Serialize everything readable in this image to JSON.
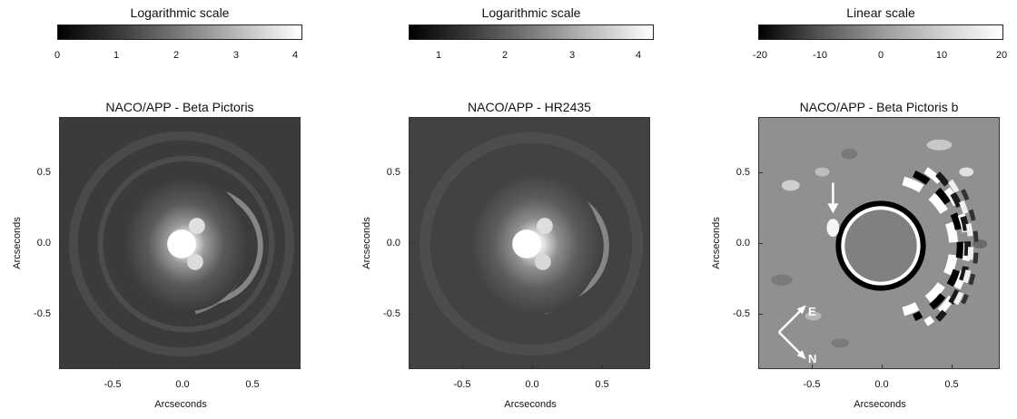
{
  "panels": [
    {
      "colorbar_title": "Logarithmic scale",
      "colorbar_ticks": [
        "0",
        "1",
        "2",
        "3",
        "4"
      ],
      "title": "NACO/APP - Beta Pictoris",
      "ylabel": "Arcseconds",
      "xlabel": "Arcseconds",
      "yticks": [
        "0.5",
        "0.0",
        "-0.5"
      ],
      "xticks": [
        "-0.5",
        "0.0",
        "0.5"
      ]
    },
    {
      "colorbar_title": "Logarithmic scale",
      "colorbar_ticks": [
        "1",
        "2",
        "3",
        "4"
      ],
      "title": "NACO/APP - HR2435",
      "ylabel": "Arcseconds",
      "xlabel": "Arcseconds",
      "yticks": [
        "0.5",
        "0.0",
        "-0.5"
      ],
      "xticks": [
        "-0.5",
        "0.0",
        "0.5"
      ]
    },
    {
      "colorbar_title": "Linear scale",
      "colorbar_ticks": [
        "-20",
        "-10",
        "0",
        "10",
        "20"
      ],
      "title": "NACO/APP - Beta Pictoris b",
      "ylabel": "Arcseconds",
      "xlabel": "Arcseconds",
      "yticks": [
        "0.5",
        "0.0",
        "-0.5"
      ],
      "xticks": [
        "-0.5",
        "0.0",
        "0.5"
      ],
      "compass": {
        "east": "E",
        "north": "N"
      }
    }
  ]
}
